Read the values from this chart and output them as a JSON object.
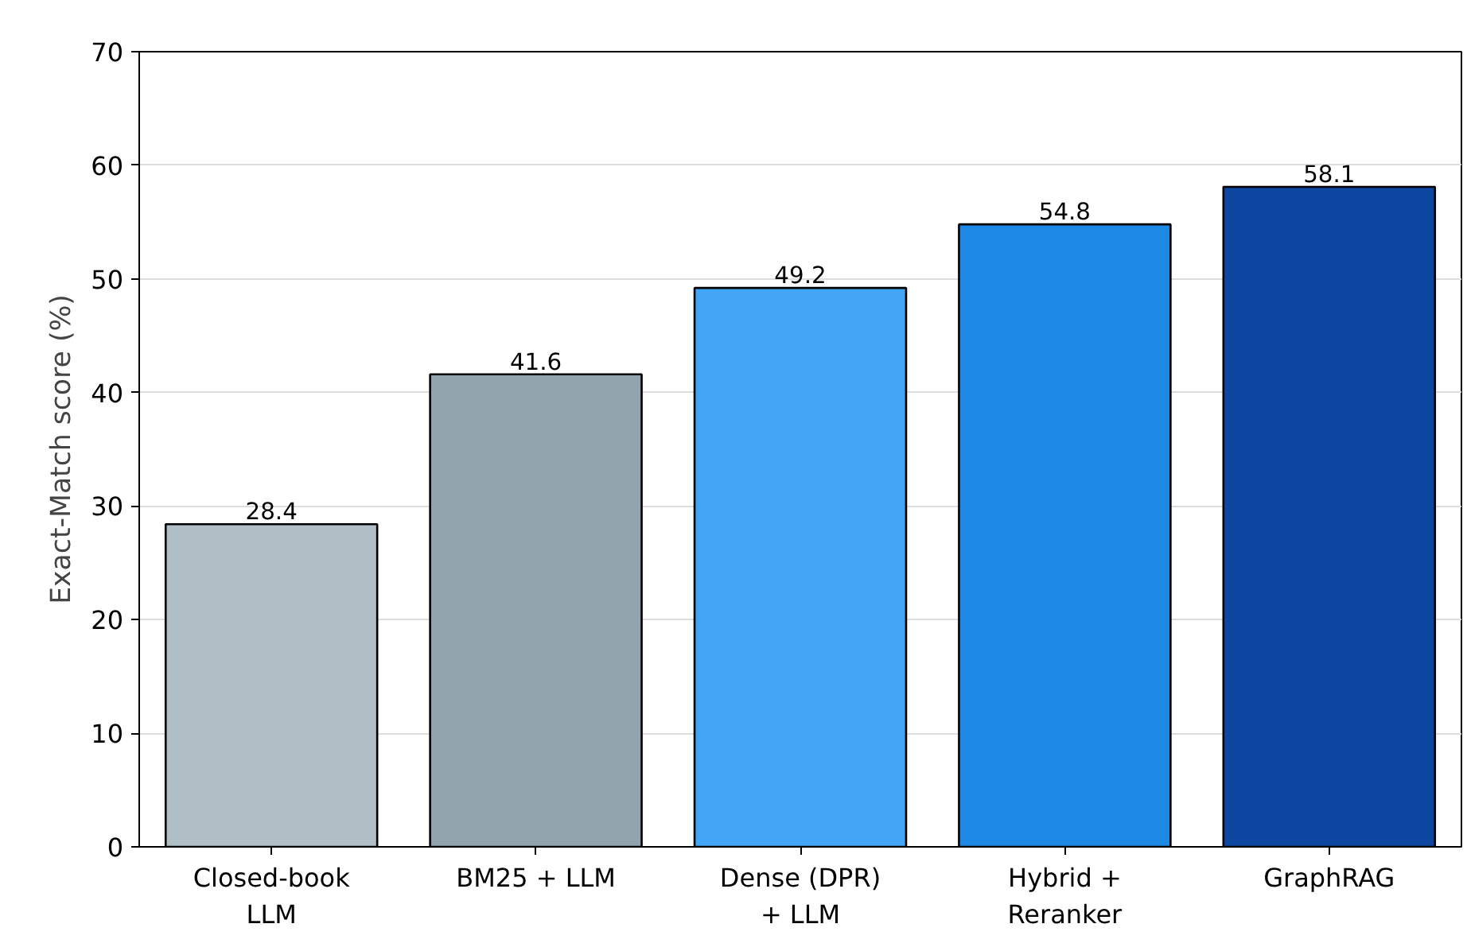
{
  "chart_data": {
    "type": "bar",
    "ylabel": "Exact-Match score (%)",
    "categories": [
      "Closed-book\nLLM",
      "BM25 + LLM",
      "Dense (DPR)\n+ LLM",
      "Hybrid +\nReranker",
      "GraphRAG"
    ],
    "values": [
      28.4,
      41.6,
      49.2,
      54.8,
      58.1
    ],
    "colors": [
      "#b0bec5",
      "#90a4ae",
      "#42a5f5",
      "#1e88e5",
      "#0d47a1"
    ],
    "ylim": [
      0,
      70
    ],
    "yticks": [
      0,
      10,
      20,
      30,
      40,
      50,
      60,
      70
    ],
    "grid": "y",
    "data_labels": true
  }
}
